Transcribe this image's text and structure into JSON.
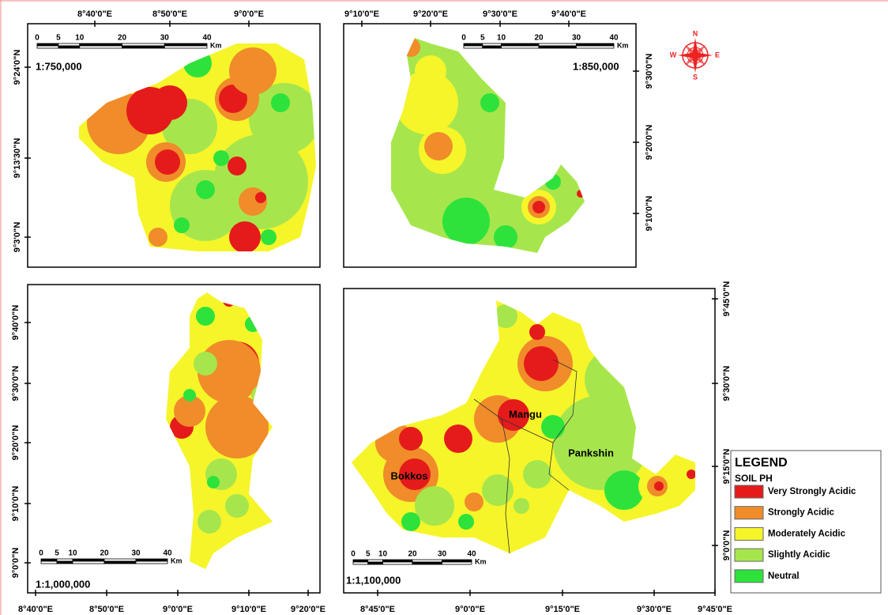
{
  "panels": [
    {
      "scale": "1:750,000",
      "top_labels": [
        "8°40'0\"E",
        "8°50'0\"E",
        "9°0'0\"E"
      ],
      "left_labels": [
        "9°24'0\"N",
        "9°13'30\"N",
        "9°3'0\"N"
      ],
      "scale_bar": {
        "ticks": [
          0,
          5,
          10,
          20,
          30,
          40
        ],
        "unit": "Km"
      }
    },
    {
      "scale": "1:850,000",
      "top_labels": [
        "9°10'0\"E",
        "9°20'0\"E",
        "9°30'0\"E",
        "9°40'0\"E"
      ],
      "right_labels": [
        "9°30'0\"N",
        "9°20'0\"N",
        "9°10'0\"N"
      ],
      "scale_bar": {
        "ticks": [
          0,
          5,
          10,
          20,
          30,
          40
        ],
        "unit": "Km"
      }
    },
    {
      "scale": "1:1,000,000",
      "left_labels": [
        "9°40'0\"N",
        "9°30'0\"N",
        "9°20'0\"N",
        "9°10'0\"N",
        "9°0'0\"N"
      ],
      "bottom_labels": [
        "8°40'0\"E",
        "8°50'0\"E",
        "9°0'0\"E",
        "9°10'0\"E",
        "9°20'0\"E"
      ],
      "scale_bar": {
        "ticks": [
          0,
          5,
          10,
          20,
          30,
          40
        ],
        "unit": "Km"
      }
    },
    {
      "scale": "1:1,100,000",
      "right_labels": [
        "9°45'0\"N",
        "9°30'0\"N",
        "9°15'0\"N",
        "9°0'0\"N"
      ],
      "bottom_labels": [
        "8°45'0\"E",
        "9°0'0\"E",
        "9°15'0\"E",
        "9°30'0\"E",
        "9°45'0\"E"
      ],
      "scale_bar": {
        "ticks": [
          0,
          5,
          10,
          20,
          30,
          40
        ],
        "unit": "Km"
      },
      "towns": [
        "Bokkos",
        "Mangu",
        "Pankshin"
      ]
    }
  ],
  "north_arrow": {
    "n": "N",
    "s": "S",
    "e": "E",
    "w": "W"
  },
  "legend": {
    "title": "LEGEND",
    "subtitle": "SOIL PH",
    "items": [
      {
        "label": "Very Strongly Acidic",
        "color": "#e51b1b"
      },
      {
        "label": "Strongly Acidic",
        "color": "#f08c2a"
      },
      {
        "label": "Moderately Acidic",
        "color": "#f5f52a"
      },
      {
        "label": "Slightly Acidic",
        "color": "#a6e64c"
      },
      {
        "label": "Neutral",
        "color": "#2ee23c"
      }
    ]
  }
}
